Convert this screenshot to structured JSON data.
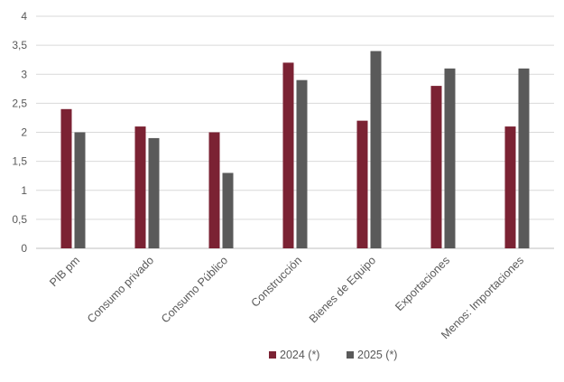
{
  "chart_data": {
    "type": "bar",
    "categories": [
      "PIB pm",
      "Consumo privado",
      "Consumo Público",
      "Construcción",
      "Bienes de Equipo",
      "Exportaciones",
      "Menos: Importaciones"
    ],
    "series": [
      {
        "name": "2024 (*)",
        "color": "#7b2233",
        "values": [
          2.4,
          2.1,
          2.0,
          3.2,
          2.2,
          2.8,
          2.1
        ]
      },
      {
        "name": "2025 (*)",
        "color": "#5a5a5a",
        "values": [
          2.0,
          1.9,
          1.3,
          2.9,
          3.4,
          3.1,
          3.1
        ]
      }
    ],
    "ylim": [
      0,
      4
    ],
    "yticks": [
      "0",
      "0,5",
      "1",
      "1,5",
      "2",
      "2,5",
      "3",
      "3,5",
      "4"
    ],
    "grid": true,
    "legend_position": "bottom-center"
  }
}
